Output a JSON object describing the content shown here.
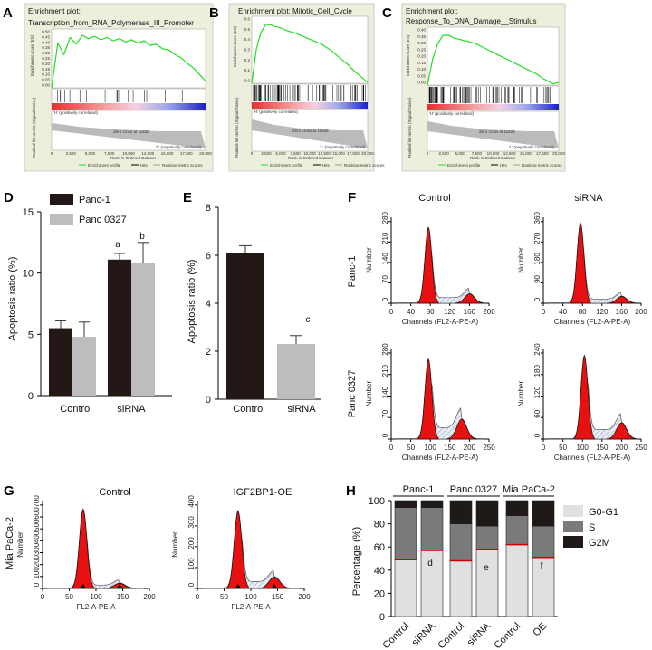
{
  "panels": {
    "A": "A",
    "B": "B",
    "C": "C",
    "D": "D",
    "E": "E",
    "F": "F",
    "G": "G",
    "H": "H"
  },
  "gsea": [
    {
      "title_line1": "Enrichment plot:",
      "title_line2": "Transcription_from_RNA_Polymerase_III_Promoter",
      "ylabel": "Enrichment score (ES)",
      "ticks": [
        "0.50",
        "0.45",
        "0.40",
        "0.35",
        "0.30",
        "0.25",
        "0.20",
        "0.15",
        "0.10",
        "0.05",
        "0.00"
      ],
      "curve": [
        0,
        0.4,
        0.3,
        0.45,
        0.39,
        0.47,
        0.44,
        0.46,
        0.43,
        0.45,
        0.42,
        0.44,
        0.41,
        0.43,
        0.4,
        0.42,
        0.38,
        0.39,
        0.35,
        0.34,
        0.3,
        0.27,
        0.22,
        0.18,
        0.12,
        0.06
      ]
    },
    {
      "title_line1": "Enrichment plot: Mitotic_Cell_Cycle",
      "title_line2": "",
      "ylabel": "Enrichment score (ES)",
      "ticks": [
        "0.6",
        "0.5",
        "0.4",
        "0.3",
        "0.2",
        "0.1",
        "0.0"
      ],
      "curve": [
        0,
        0.35,
        0.52,
        0.6,
        0.6,
        0.58,
        0.57,
        0.55,
        0.53,
        0.52,
        0.5,
        0.48,
        0.46,
        0.44,
        0.42,
        0.4,
        0.37,
        0.34,
        0.3,
        0.26,
        0.22,
        0.18,
        0.13,
        0.09,
        0.05,
        0.01
      ]
    },
    {
      "title_line1": "Enrichment plot:",
      "title_line2": "Response_To_DNA_Damage__Stimulus",
      "ylabel": "Enrichment score (ES)",
      "ticks": [
        "0.40",
        "0.35",
        "0.30",
        "0.25",
        "0.20",
        "0.15",
        "0.10",
        "0.05",
        "0.00"
      ],
      "curve": [
        0,
        0.2,
        0.32,
        0.38,
        0.38,
        0.36,
        0.35,
        0.34,
        0.33,
        0.32,
        0.3,
        0.28,
        0.26,
        0.24,
        0.22,
        0.2,
        0.18,
        0.16,
        0.14,
        0.12,
        0.1,
        0.08,
        0.05,
        0.03,
        0.01,
        0.02
      ]
    }
  ],
  "gsea_common": {
    "pos_corr": "'H' (positively correlated)",
    "neg_corr": "'L' (negatively correlated)",
    "zero_cross": "Zero cross at 11628",
    "xlabel": "Rank in Ordered Dataset",
    "rank_ylabel": "Ranked list metric (Signal2Noise)",
    "xticks": [
      "0",
      "2,500",
      "5,000",
      "7,500",
      "10,000",
      "12,500",
      "15,000",
      "17,500",
      "20,000"
    ],
    "legend": [
      "Enrichment profile",
      "Hits",
      "Ranking metric scores"
    ]
  },
  "panelD": {
    "ylabel": "Apoptosis ratio (%)",
    "legend": [
      "Panc-1",
      "Panc 0327"
    ],
    "annotations": [
      "a",
      "b"
    ],
    "ytick_labels": [
      "0",
      "5",
      "10",
      "15"
    ]
  },
  "panelE": {
    "ylabel": "Apoptosis ratio (%)",
    "annotation": "c",
    "ytick_labels": [
      "0",
      "2",
      "4",
      "6",
      "8"
    ]
  },
  "panelF": {
    "col_titles": [
      "Control",
      "siRNA"
    ],
    "row_titles": [
      "Panc-1",
      "Panc 0327"
    ],
    "ylabel": "Number",
    "xlabel": "Channels (FL2-A-PE-A)",
    "hist": [
      {
        "yticks": [
          "0",
          "70",
          "140",
          "210",
          "280"
        ],
        "xticks": [
          "0",
          "40",
          "80",
          "120",
          "160",
          "200"
        ]
      },
      {
        "yticks": [
          "0",
          "90",
          "180",
          "270",
          "360"
        ],
        "xticks": [
          "0",
          "40",
          "80",
          "120",
          "160",
          "200"
        ]
      },
      {
        "yticks": [
          "0",
          "70",
          "140",
          "210",
          "280"
        ],
        "xticks": [
          "0",
          "50",
          "100",
          "150",
          "200",
          "250"
        ]
      },
      {
        "yticks": [
          "0",
          "60",
          "120",
          "180",
          "240"
        ],
        "xticks": [
          "0",
          "50",
          "100",
          "150",
          "200",
          "250"
        ]
      }
    ]
  },
  "panelG": {
    "side_title": "Mia PaCa-2",
    "col_titles": [
      "Control",
      "IGF2BP1-OE"
    ],
    "ylabel": "Number",
    "xlabel": "FL2-A-PE-A",
    "hist": [
      {
        "yticks": [
          "0",
          "100",
          "200",
          "300",
          "400",
          "500",
          "600",
          "700"
        ],
        "xticks": [
          "0",
          "50",
          "100",
          "150",
          "200"
        ]
      },
      {
        "yticks": [
          "0",
          "100",
          "200",
          "300",
          "400"
        ],
        "xticks": [
          "0",
          "50",
          "100",
          "150",
          "200"
        ]
      }
    ]
  },
  "panelH": {
    "ylabel": "Percentage (%)",
    "groups": [
      "Panc-1",
      "Panc 0327",
      "Mia PaCa-2"
    ],
    "legend": [
      "G0-G1",
      "S",
      "G2M"
    ],
    "annotations": [
      "d",
      "e",
      "f"
    ],
    "ytick_labels": [
      "0",
      "20",
      "40",
      "60",
      "80",
      "100"
    ]
  },
  "chart_data": [
    {
      "type": "bar",
      "panel": "D",
      "title": "",
      "ylabel": "Apoptosis ratio (%)",
      "categories": [
        "Control",
        "siRNA"
      ],
      "series": [
        {
          "name": "Panc-1",
          "color": "#231815",
          "values": [
            5.5,
            11.1
          ],
          "errors": [
            0.6,
            0.5
          ]
        },
        {
          "name": "Panc 0327",
          "color": "#bdbdbd",
          "values": [
            4.8,
            10.8
          ],
          "errors": [
            1.2,
            1.7
          ]
        }
      ],
      "ylim": [
        0,
        15
      ],
      "yticks": [
        0,
        5,
        10,
        15
      ]
    },
    {
      "type": "bar",
      "panel": "E",
      "title": "",
      "ylabel": "Apoptosis ratio (%)",
      "categories": [
        "Control",
        "siRNA"
      ],
      "series": [
        {
          "name": "Apoptosis",
          "values": [
            6.1,
            2.3
          ],
          "errors": [
            0.3,
            0.35
          ],
          "colors": [
            "#231815",
            "#bdbdbd"
          ]
        }
      ],
      "ylim": [
        0,
        8
      ],
      "yticks": [
        0,
        2,
        4,
        6,
        8
      ]
    },
    {
      "type": "bar",
      "stacked": true,
      "panel": "H",
      "title": "",
      "ylabel": "Percentage (%)",
      "categories": [
        "Control",
        "siRNA",
        "Control",
        "siRNA",
        "Control",
        "OE"
      ],
      "series": [
        {
          "name": "G0-G1",
          "color": "#e0e0e0",
          "values": [
            49,
            57,
            48,
            58,
            62,
            51
          ]
        },
        {
          "name": "S",
          "color": "#7a7a7a",
          "values": [
            45,
            37,
            32,
            20,
            25,
            27
          ]
        },
        {
          "name": "G2M",
          "color": "#1f1a17",
          "values": [
            6,
            6,
            20,
            22,
            13,
            22
          ]
        }
      ],
      "ylim": [
        0,
        100
      ],
      "yticks": [
        0,
        20,
        40,
        60,
        80,
        100
      ]
    }
  ]
}
